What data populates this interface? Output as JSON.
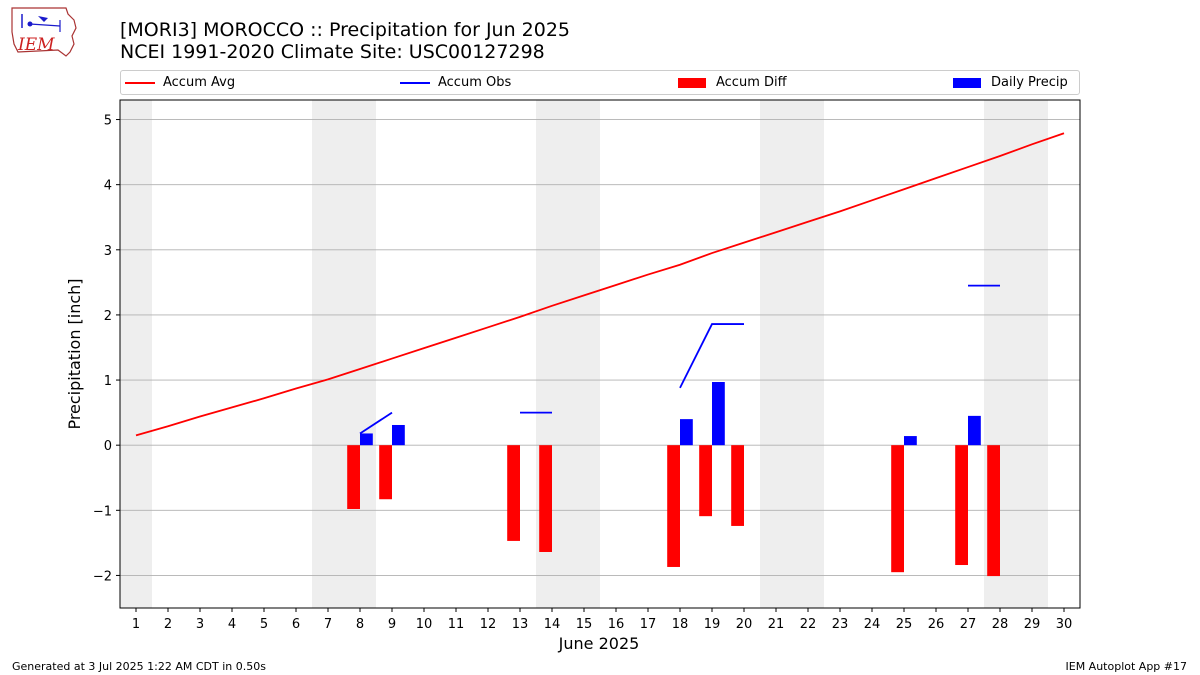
{
  "title": {
    "line1": "[MORI3] MOROCCO :: Precipitation for Jun 2025",
    "line2": "NCEI 1991-2020 Climate Site: USC00127298"
  },
  "logo": {
    "text": "IEM",
    "icon": "iowa-state-map-logo-icon"
  },
  "legend": {
    "items": [
      {
        "label": "Accum Avg",
        "kind": "line",
        "color": "#ff0000"
      },
      {
        "label": "Accum Obs",
        "kind": "line",
        "color": "#0000ff"
      },
      {
        "label": "Accum Diff",
        "kind": "bar",
        "color": "#ff0000"
      },
      {
        "label": "Daily Precip",
        "kind": "bar",
        "color": "#0000ff"
      }
    ]
  },
  "footer": {
    "left": "Generated at 3 Jul 2025 1:22 AM CDT in 0.50s",
    "right": "IEM Autoplot App #17"
  },
  "chart_data": {
    "type": "bar",
    "xlabel": "June 2025",
    "ylabel": "Precipitation [inch]",
    "xlim": [
      0.5,
      30.5
    ],
    "ylim": [
      -2.5,
      5.3
    ],
    "xticks": [
      1,
      2,
      3,
      4,
      5,
      6,
      7,
      8,
      9,
      10,
      11,
      12,
      13,
      14,
      15,
      16,
      17,
      18,
      19,
      20,
      21,
      22,
      23,
      24,
      25,
      26,
      27,
      28,
      29,
      30
    ],
    "yticks": [
      -2,
      -1,
      0,
      1,
      2,
      3,
      4,
      5
    ],
    "ytick_labels": [
      "−2",
      "−1",
      "0",
      "1",
      "2",
      "3",
      "4",
      "5"
    ],
    "grid": "horizontal",
    "weekend_shading": [
      [
        0.5,
        1.5
      ],
      [
        6.5,
        8.5
      ],
      [
        13.5,
        15.5
      ],
      [
        20.5,
        22.5
      ],
      [
        27.5,
        29.5
      ]
    ],
    "colors": {
      "avg": "#ff0000",
      "obs": "#0000ff",
      "diff": "#ff0000",
      "precip": "#0000ff",
      "shade": "#eeeeee",
      "grid": "#b0b0b0"
    },
    "series": [
      {
        "name": "Accum Avg",
        "kind": "line",
        "x": [
          1,
          2,
          3,
          4,
          5,
          6,
          7,
          8,
          9,
          10,
          11,
          12,
          13,
          14,
          15,
          16,
          17,
          18,
          19,
          20,
          21,
          22,
          23,
          24,
          25,
          26,
          27,
          28,
          29,
          30
        ],
        "values": [
          0.15,
          0.29,
          0.44,
          0.58,
          0.72,
          0.87,
          1.01,
          1.17,
          1.33,
          1.49,
          1.65,
          1.81,
          1.97,
          2.14,
          2.3,
          2.46,
          2.62,
          2.77,
          2.95,
          3.11,
          3.27,
          3.43,
          3.59,
          3.76,
          3.93,
          4.1,
          4.27,
          4.44,
          4.62,
          4.79
        ]
      },
      {
        "name": "Accum Obs",
        "kind": "line",
        "segments": [
          {
            "x": [
              8,
              9
            ],
            "values": [
              0.18,
              0.5
            ]
          },
          {
            "x": [
              13,
              14
            ],
            "values": [
              0.5,
              0.5
            ]
          },
          {
            "x": [
              18,
              19,
              20
            ],
            "values": [
              0.88,
              1.86,
              1.86
            ]
          },
          {
            "x": [
              27,
              28
            ],
            "values": [
              2.45,
              2.45
            ]
          }
        ]
      },
      {
        "name": "Accum Diff",
        "kind": "bar",
        "x": [
          8,
          9,
          13,
          14,
          18,
          19,
          20,
          25,
          27,
          28
        ],
        "values": [
          -0.98,
          -0.83,
          -1.47,
          -1.64,
          -1.87,
          -1.09,
          -1.24,
          -1.95,
          -1.84,
          -2.01
        ]
      },
      {
        "name": "Daily Precip",
        "kind": "bar",
        "x": [
          8,
          9,
          18,
          19,
          25,
          27
        ],
        "values": [
          0.18,
          0.31,
          0.4,
          0.97,
          0.14,
          0.45
        ]
      }
    ]
  }
}
